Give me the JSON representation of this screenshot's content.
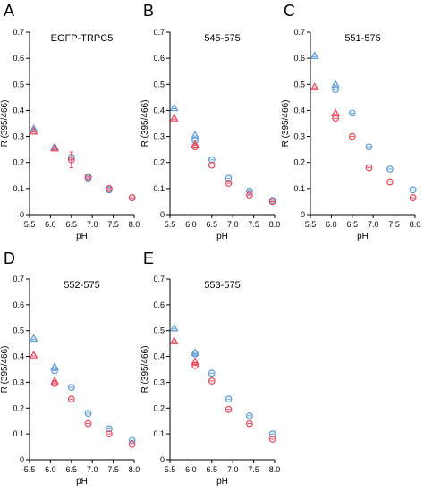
{
  "colors": {
    "series_a": "#5b9bd5",
    "series_b": "#e8445a"
  },
  "chart_data": [
    {
      "panel": "A",
      "title": "EGFP-TRPC5",
      "type": "scatter",
      "xlabel": "pH",
      "ylabel": "R (395/466)",
      "xlim": [
        5.5,
        8.0
      ],
      "ylim": [
        0,
        0.7
      ],
      "xticks": [
        "5.5",
        "6.0",
        "6.5",
        "7.0",
        "7.5",
        "8.0"
      ],
      "yticks": [
        "0",
        "0.1",
        "0.2",
        "0.3",
        "0.4",
        "0.5",
        "0.6",
        "0.7"
      ],
      "series": [
        {
          "color": "#5b9bd5",
          "points": [
            {
              "x": 5.6,
              "y": 0.33,
              "marker": "triangle"
            },
            {
              "x": 6.1,
              "y": 0.26,
              "marker": "triangle"
            },
            {
              "x": 6.5,
              "y": 0.22,
              "marker": "circle"
            },
            {
              "x": 6.9,
              "y": 0.14,
              "marker": "circle"
            },
            {
              "x": 7.4,
              "y": 0.095,
              "marker": "circle"
            },
            {
              "x": 7.95,
              "y": 0.065,
              "marker": "circle"
            }
          ]
        },
        {
          "color": "#e8445a",
          "points": [
            {
              "x": 5.6,
              "y": 0.32,
              "marker": "triangle"
            },
            {
              "x": 6.1,
              "y": 0.255,
              "marker": "triangle"
            },
            {
              "x": 6.5,
              "y": 0.21,
              "marker": "circle",
              "err": 0.03
            },
            {
              "x": 6.9,
              "y": 0.145,
              "marker": "circle"
            },
            {
              "x": 7.4,
              "y": 0.1,
              "marker": "circle"
            },
            {
              "x": 7.95,
              "y": 0.065,
              "marker": "circle"
            }
          ]
        }
      ]
    },
    {
      "panel": "B",
      "title": "545-575",
      "type": "scatter",
      "xlabel": "pH",
      "ylabel": "R (395/466)",
      "xlim": [
        5.5,
        8.0
      ],
      "ylim": [
        0,
        0.7
      ],
      "xticks": [
        "5.5",
        "6.0",
        "6.5",
        "7.0",
        "7.5",
        "8.0"
      ],
      "yticks": [
        "0",
        "0.1",
        "0.2",
        "0.3",
        "0.4",
        "0.5",
        "0.6",
        "0.7"
      ],
      "series": [
        {
          "color": "#5b9bd5",
          "points": [
            {
              "x": 5.6,
              "y": 0.41,
              "marker": "triangle"
            },
            {
              "x": 6.1,
              "y": 0.305,
              "marker": "triangle"
            },
            {
              "x": 6.1,
              "y": 0.285,
              "marker": "circle"
            },
            {
              "x": 6.5,
              "y": 0.21,
              "marker": "circle"
            },
            {
              "x": 6.9,
              "y": 0.14,
              "marker": "circle"
            },
            {
              "x": 7.4,
              "y": 0.09,
              "marker": "circle"
            },
            {
              "x": 7.95,
              "y": 0.055,
              "marker": "circle"
            }
          ]
        },
        {
          "color": "#e8445a",
          "points": [
            {
              "x": 5.6,
              "y": 0.37,
              "marker": "triangle"
            },
            {
              "x": 6.1,
              "y": 0.27,
              "marker": "triangle"
            },
            {
              "x": 6.1,
              "y": 0.26,
              "marker": "circle"
            },
            {
              "x": 6.5,
              "y": 0.19,
              "marker": "circle"
            },
            {
              "x": 6.9,
              "y": 0.12,
              "marker": "circle"
            },
            {
              "x": 7.4,
              "y": 0.075,
              "marker": "circle"
            },
            {
              "x": 7.95,
              "y": 0.05,
              "marker": "circle"
            }
          ]
        }
      ]
    },
    {
      "panel": "C",
      "title": "551-575",
      "type": "scatter",
      "xlabel": "pH",
      "ylabel": "R (395/466)",
      "xlim": [
        5.5,
        8.0
      ],
      "ylim": [
        0,
        0.7
      ],
      "xticks": [
        "5.5",
        "6.0",
        "6.5",
        "7.0",
        "7.5",
        "8.0"
      ],
      "yticks": [
        "0",
        "0.1",
        "0.2",
        "0.3",
        "0.4",
        "0.5",
        "0.6",
        "0.7"
      ],
      "series": [
        {
          "color": "#5b9bd5",
          "points": [
            {
              "x": 5.6,
              "y": 0.61,
              "marker": "triangle"
            },
            {
              "x": 6.1,
              "y": 0.5,
              "marker": "triangle"
            },
            {
              "x": 6.1,
              "y": 0.48,
              "marker": "circle"
            },
            {
              "x": 6.5,
              "y": 0.39,
              "marker": "circle"
            },
            {
              "x": 6.9,
              "y": 0.26,
              "marker": "circle"
            },
            {
              "x": 7.4,
              "y": 0.175,
              "marker": "circle"
            },
            {
              "x": 7.95,
              "y": 0.095,
              "marker": "circle"
            }
          ]
        },
        {
          "color": "#e8445a",
          "points": [
            {
              "x": 5.6,
              "y": 0.49,
              "marker": "triangle"
            },
            {
              "x": 6.1,
              "y": 0.39,
              "marker": "triangle"
            },
            {
              "x": 6.1,
              "y": 0.37,
              "marker": "circle"
            },
            {
              "x": 6.5,
              "y": 0.3,
              "marker": "circle"
            },
            {
              "x": 6.9,
              "y": 0.18,
              "marker": "circle"
            },
            {
              "x": 7.4,
              "y": 0.125,
              "marker": "circle"
            },
            {
              "x": 7.95,
              "y": 0.065,
              "marker": "circle"
            }
          ]
        }
      ]
    },
    {
      "panel": "D",
      "title": "552-575",
      "type": "scatter",
      "xlabel": "pH",
      "ylabel": "R (395/466)",
      "xlim": [
        5.5,
        8.0
      ],
      "ylim": [
        0,
        0.7
      ],
      "xticks": [
        "5.5",
        "6.0",
        "6.5",
        "7.0",
        "7.5",
        "8.0"
      ],
      "yticks": [
        "0",
        "0.1",
        "0.2",
        "0.3",
        "0.4",
        "0.5",
        "0.6",
        "0.7"
      ],
      "series": [
        {
          "color": "#5b9bd5",
          "points": [
            {
              "x": 5.6,
              "y": 0.47,
              "marker": "triangle"
            },
            {
              "x": 6.1,
              "y": 0.36,
              "marker": "triangle"
            },
            {
              "x": 6.1,
              "y": 0.345,
              "marker": "circle"
            },
            {
              "x": 6.5,
              "y": 0.28,
              "marker": "circle"
            },
            {
              "x": 6.9,
              "y": 0.18,
              "marker": "circle"
            },
            {
              "x": 7.4,
              "y": 0.12,
              "marker": "circle"
            },
            {
              "x": 7.95,
              "y": 0.075,
              "marker": "circle"
            }
          ]
        },
        {
          "color": "#e8445a",
          "points": [
            {
              "x": 5.6,
              "y": 0.405,
              "marker": "triangle"
            },
            {
              "x": 6.1,
              "y": 0.305,
              "marker": "triangle"
            },
            {
              "x": 6.1,
              "y": 0.295,
              "marker": "circle"
            },
            {
              "x": 6.5,
              "y": 0.235,
              "marker": "circle"
            },
            {
              "x": 6.9,
              "y": 0.14,
              "marker": "circle"
            },
            {
              "x": 7.4,
              "y": 0.1,
              "marker": "circle"
            },
            {
              "x": 7.95,
              "y": 0.06,
              "marker": "circle"
            }
          ]
        }
      ]
    },
    {
      "panel": "E",
      "title": "553-575",
      "type": "scatter",
      "xlabel": "pH",
      "ylabel": "R (395/466)",
      "xlim": [
        5.5,
        8.0
      ],
      "ylim": [
        0,
        0.7
      ],
      "xticks": [
        "5.5",
        "6.0",
        "6.5",
        "7.0",
        "7.5",
        "8.0"
      ],
      "yticks": [
        "0",
        "0.1",
        "0.2",
        "0.3",
        "0.4",
        "0.5",
        "0.6",
        "0.7"
      ],
      "series": [
        {
          "color": "#5b9bd5",
          "points": [
            {
              "x": 5.6,
              "y": 0.51,
              "marker": "triangle"
            },
            {
              "x": 6.1,
              "y": 0.415,
              "marker": "triangle"
            },
            {
              "x": 6.1,
              "y": 0.41,
              "marker": "circle"
            },
            {
              "x": 6.5,
              "y": 0.335,
              "marker": "circle"
            },
            {
              "x": 6.9,
              "y": 0.235,
              "marker": "circle"
            },
            {
              "x": 7.4,
              "y": 0.17,
              "marker": "circle"
            },
            {
              "x": 7.95,
              "y": 0.1,
              "marker": "circle"
            }
          ]
        },
        {
          "color": "#e8445a",
          "points": [
            {
              "x": 5.6,
              "y": 0.46,
              "marker": "triangle"
            },
            {
              "x": 6.1,
              "y": 0.38,
              "marker": "triangle"
            },
            {
              "x": 6.1,
              "y": 0.365,
              "marker": "circle"
            },
            {
              "x": 6.5,
              "y": 0.305,
              "marker": "circle"
            },
            {
              "x": 6.9,
              "y": 0.195,
              "marker": "circle"
            },
            {
              "x": 7.4,
              "y": 0.14,
              "marker": "circle"
            },
            {
              "x": 7.95,
              "y": 0.08,
              "marker": "circle"
            }
          ]
        }
      ]
    }
  ]
}
